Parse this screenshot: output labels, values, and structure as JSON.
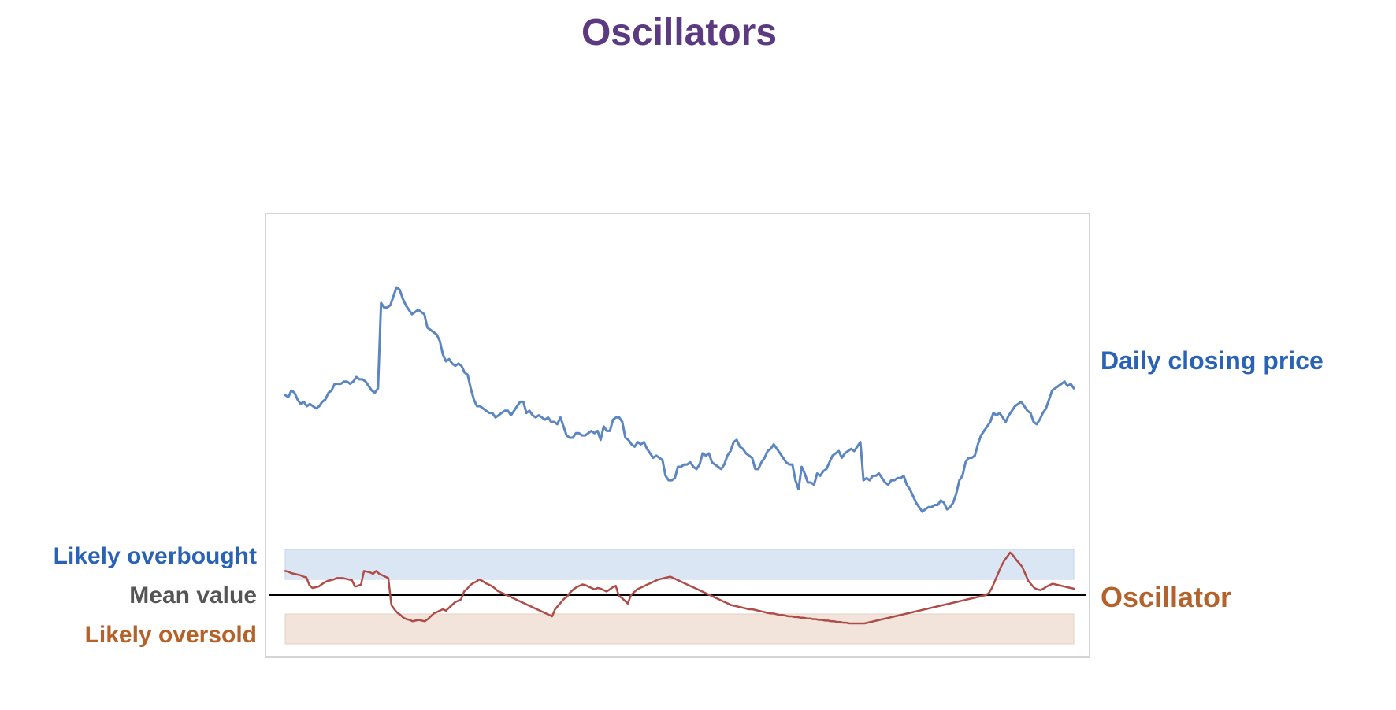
{
  "title": "Oscillators",
  "labels": {
    "price": "Daily closing price",
    "oscillator": "Oscillator",
    "overbought": "Likely overbought",
    "mean": "Mean value",
    "oversold": "Likely oversold"
  },
  "colors": {
    "title": "#5b3a82",
    "price_line": "#5b86c2",
    "oscillator_line": "#b04c48",
    "overbought_band": "#dbe6f4",
    "oversold_band": "#f2e4da",
    "mean_line": "#000000",
    "frame": "#d4d4d4"
  },
  "chart_data": [
    {
      "type": "line",
      "title": "Daily closing price",
      "series": [
        {
          "name": "Daily closing price",
          "values": [
            52,
            51,
            54,
            53,
            50,
            48,
            49,
            47,
            48,
            47,
            46,
            47,
            49,
            50,
            53,
            54,
            57,
            57,
            57,
            58,
            58,
            57,
            58,
            60,
            59,
            59,
            58,
            56,
            54,
            53,
            55,
            93,
            91,
            91,
            92,
            96,
            100,
            99,
            95,
            92,
            90,
            88,
            89,
            90,
            89,
            88,
            82,
            81,
            80,
            79,
            76,
            70,
            67,
            68,
            66,
            65,
            66,
            65,
            62,
            61,
            55,
            50,
            47,
            47,
            46,
            45,
            44,
            44,
            42,
            43,
            44,
            45,
            45,
            43,
            45,
            47,
            49,
            49,
            44,
            45,
            43,
            42,
            43,
            42,
            41,
            42,
            40,
            40,
            39,
            42,
            38,
            34,
            33,
            33,
            35,
            35,
            34,
            34,
            35,
            36,
            35,
            36,
            32,
            38,
            36,
            36,
            41,
            42,
            42,
            40,
            33,
            32,
            30,
            29,
            31,
            30,
            31,
            28,
            26,
            24,
            25,
            24,
            23,
            16,
            14,
            14,
            15,
            20,
            20,
            21,
            21,
            22,
            20,
            19,
            21,
            26,
            25,
            26,
            22,
            21,
            20,
            19,
            21,
            25,
            27,
            31,
            32,
            29,
            28,
            26,
            25,
            24,
            19,
            19,
            22,
            24,
            27,
            28,
            30,
            28,
            26,
            24,
            22,
            21,
            21,
            14,
            10,
            20,
            17,
            13,
            13,
            12,
            17,
            16,
            18,
            19,
            22,
            25,
            26,
            27,
            24,
            26,
            27,
            28,
            27,
            29,
            31,
            14,
            15,
            14,
            16,
            16,
            17,
            15,
            13,
            12,
            14,
            14,
            15,
            15,
            16,
            12,
            10,
            7,
            4,
            2,
            0,
            1,
            2,
            2,
            3,
            3,
            5,
            4,
            1,
            2,
            4,
            8,
            14,
            16,
            22,
            24,
            24,
            25,
            30,
            34,
            36,
            38,
            40,
            44,
            43,
            44,
            42,
            40,
            43,
            45,
            47,
            48,
            49,
            47,
            45,
            44,
            40,
            39,
            41,
            44,
            46,
            50,
            54,
            55,
            56,
            57,
            58,
            56,
            57,
            55
          ],
          "ylim": [
            0,
            100
          ]
        }
      ]
    },
    {
      "type": "line",
      "title": "Oscillator",
      "series": [
        {
          "name": "Oscillator",
          "values": [
            34,
            33,
            31,
            30,
            29,
            28,
            26,
            25,
            14,
            10,
            11,
            12,
            15,
            18,
            20,
            21,
            22,
            24,
            24,
            24,
            23,
            22,
            21,
            12,
            13,
            15,
            34,
            33,
            32,
            30,
            34,
            30,
            28,
            26,
            24,
            -14,
            -20,
            -25,
            -28,
            -32,
            -34,
            -35,
            -37,
            -36,
            -35,
            -36,
            -37,
            -34,
            -30,
            -26,
            -24,
            -22,
            -20,
            -22,
            -18,
            -14,
            -10,
            -8,
            -6,
            5,
            9,
            14,
            17,
            19,
            22,
            20,
            17,
            15,
            13,
            10,
            6,
            4,
            2,
            0,
            -2,
            -4,
            -6,
            -8,
            -10,
            -12,
            -14,
            -16,
            -18,
            -20,
            -22,
            -24,
            -26,
            -28,
            -30,
            -20,
            -15,
            -10,
            -5,
            -2,
            4,
            8,
            11,
            13,
            15,
            14,
            12,
            10,
            8,
            10,
            9,
            7,
            5,
            8,
            11,
            13,
            -1,
            -4,
            -8,
            -12,
            0,
            4,
            8,
            10,
            12,
            14,
            16,
            18,
            20,
            22,
            23,
            24,
            25,
            26,
            24,
            22,
            20,
            18,
            16,
            14,
            12,
            10,
            8,
            6,
            4,
            2,
            0,
            -2,
            -4,
            -6,
            -8,
            -10,
            -12,
            -14,
            -15,
            -16,
            -17,
            -18,
            -19,
            -20,
            -20,
            -21,
            -22,
            -23,
            -24,
            -25,
            -26,
            -26,
            -27,
            -28,
            -28,
            -29,
            -30,
            -30,
            -31,
            -31,
            -32,
            -32,
            -33,
            -33,
            -34,
            -34,
            -35,
            -35,
            -36,
            -36,
            -37,
            -37,
            -38,
            -38,
            -39,
            -39,
            -40,
            -40,
            -40,
            -40,
            -40,
            -40,
            -39,
            -38,
            -37,
            -36,
            -35,
            -34,
            -33,
            -32,
            -31,
            -30,
            -29,
            -28,
            -27,
            -26,
            -25,
            -24,
            -23,
            -22,
            -21,
            -20,
            -19,
            -18,
            -17,
            -16,
            -15,
            -14,
            -13,
            -12,
            -11,
            -10,
            -9,
            -8,
            -7,
            -6,
            -5,
            -4,
            -3,
            -2,
            -1,
            0,
            3,
            10,
            20,
            30,
            40,
            48,
            54,
            60,
            56,
            50,
            45,
            40,
            30,
            20,
            15,
            10,
            8,
            7,
            9,
            12,
            14,
            16,
            15,
            14,
            13,
            12,
            11,
            10,
            9
          ],
          "ylim": [
            -60,
            60
          ]
        }
      ],
      "bands": {
        "overbought": [
          30,
          60
        ],
        "oversold": [
          -60,
          -30
        ],
        "mean": 0
      }
    }
  ]
}
